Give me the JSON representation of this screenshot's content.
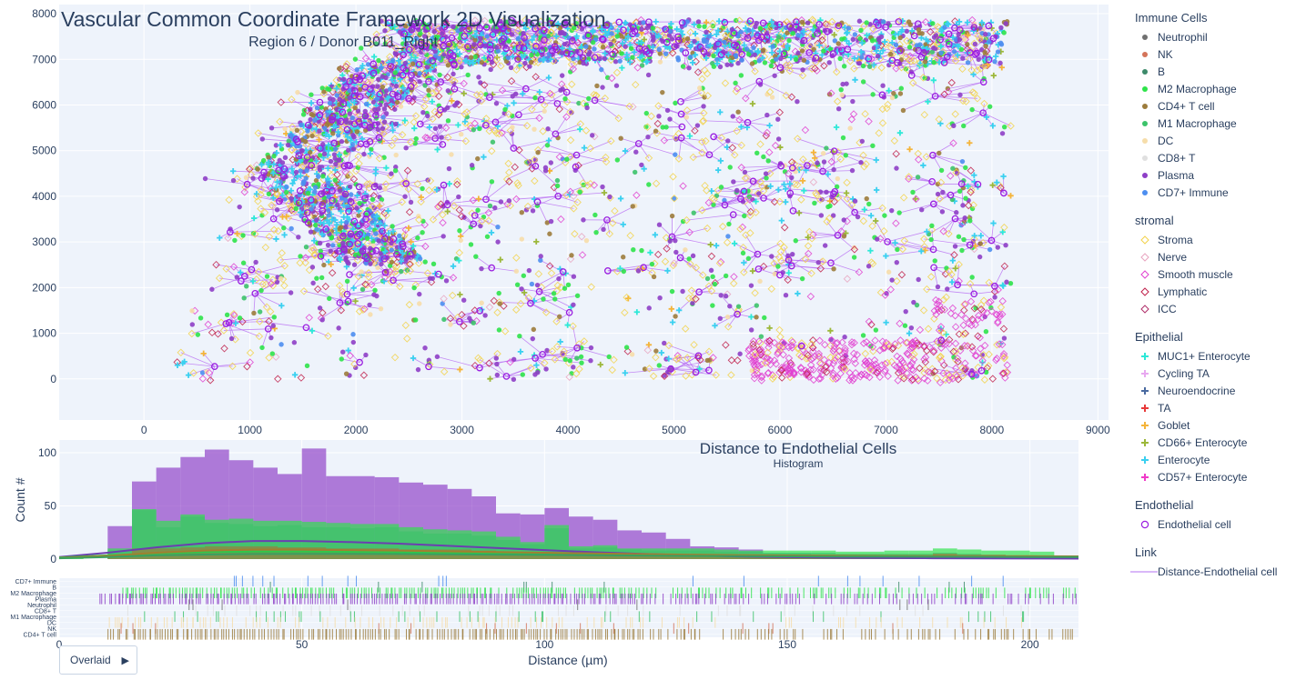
{
  "chart_data": [
    {
      "type": "scatter",
      "title": "Vascular Common Coordinate Framework 2D Visualization",
      "subtitle": "Region 6 / Donor B011_Right",
      "xlim": [
        -800,
        9100
      ],
      "ylim": [
        -900,
        8200
      ],
      "x_ticks": [
        0,
        1000,
        2000,
        3000,
        4000,
        5000,
        6000,
        7000,
        8000,
        9000
      ],
      "y_ticks": [
        0,
        1000,
        2000,
        3000,
        4000,
        5000,
        6000,
        7000,
        8000
      ],
      "grid": true,
      "legend_position": "right",
      "legend_groups": [
        {
          "title": "Immune Cells",
          "items": [
            {
              "name": "Neutrophil",
              "color": "#707070",
              "symbol": "circle"
            },
            {
              "name": "NK",
              "color": "#d4745a",
              "symbol": "circle"
            },
            {
              "name": "B",
              "color": "#3d8a6a",
              "symbol": "circle"
            },
            {
              "name": "M2 Macrophage",
              "color": "#2ee34a",
              "symbol": "circle"
            },
            {
              "name": "CD4+ T cell",
              "color": "#9c7c3c",
              "symbol": "circle"
            },
            {
              "name": "M1 Macrophage",
              "color": "#3cc36a",
              "symbol": "circle"
            },
            {
              "name": "DC",
              "color": "#f6ddaa",
              "symbol": "circle"
            },
            {
              "name": "CD8+ T",
              "color": "#e0e0e0",
              "symbol": "circle"
            },
            {
              "name": "Plasma",
              "color": "#8e3fc7",
              "symbol": "circle"
            },
            {
              "name": "CD7+ Immune",
              "color": "#4d8ef0",
              "symbol": "circle"
            }
          ]
        },
        {
          "title": "stromal",
          "items": [
            {
              "name": "Stroma",
              "color": "#f2d24a",
              "symbol": "diamond-open"
            },
            {
              "name": "Nerve",
              "color": "#e8a4c0",
              "symbol": "diamond-open"
            },
            {
              "name": "Smooth muscle",
              "color": "#e040d0",
              "symbol": "diamond-open"
            },
            {
              "name": "Lymphatic",
              "color": "#c0204a",
              "symbol": "diamond-open"
            },
            {
              "name": "ICC",
              "color": "#b0306a",
              "symbol": "diamond-open"
            }
          ]
        },
        {
          "title": "Epithelial",
          "items": [
            {
              "name": "MUC1+ Enterocyte",
              "color": "#2ee8d8",
              "symbol": "cross"
            },
            {
              "name": "Cycling TA",
              "color": "#e8a8f0",
              "symbol": "cross"
            },
            {
              "name": "Neuroendocrine",
              "color": "#4a6aa0",
              "symbol": "cross"
            },
            {
              "name": "TA",
              "color": "#e83a3a",
              "symbol": "cross"
            },
            {
              "name": "Goblet",
              "color": "#f4b43a",
              "symbol": "cross"
            },
            {
              "name": "CD66+ Enterocyte",
              "color": "#9cb83a",
              "symbol": "cross"
            },
            {
              "name": "Enterocyte",
              "color": "#3ad0f0",
              "symbol": "cross"
            },
            {
              "name": "CD57+ Enterocyte",
              "color": "#f03ac8",
              "symbol": "cross"
            }
          ]
        },
        {
          "title": "Endothelial",
          "items": [
            {
              "name": "Endothelial cell",
              "color": "#9a1ee0",
              "symbol": "circle-open"
            }
          ]
        },
        {
          "title": "Link",
          "items": [
            {
              "name": "Distance-Endothelial cell",
              "color": "#d9b8f8",
              "symbol": "line"
            }
          ]
        }
      ]
    },
    {
      "type": "histogram",
      "title": "Distance to Endothelial Cells",
      "subtitle": "Histogram",
      "xlabel": "Distance (µm)",
      "ylabel": "Count #",
      "xlim": [
        0,
        210
      ],
      "ylim": [
        0,
        112
      ],
      "x_ticks": [
        0,
        50,
        100,
        150,
        200
      ],
      "y_ticks": [
        0,
        50,
        100
      ],
      "bin_width": 5,
      "bin_starts": [
        0,
        10,
        15,
        20,
        25,
        30,
        35,
        40,
        45,
        50,
        55,
        60,
        65,
        70,
        75,
        80,
        85,
        90,
        95,
        100,
        105,
        110,
        115,
        120,
        125,
        130,
        135,
        140,
        145,
        150,
        155,
        160,
        165,
        170,
        175,
        180,
        185,
        190,
        195,
        200,
        205
      ],
      "barmode": "overlay",
      "series": [
        {
          "name": "Plasma",
          "color": "#8e3fc7",
          "values": [
            0,
            31,
            73,
            86,
            96,
            103,
            93,
            86,
            80,
            104,
            78,
            78,
            77,
            72,
            70,
            66,
            59,
            43,
            42,
            48,
            40,
            37,
            27,
            25,
            19,
            12,
            11,
            9,
            5,
            5,
            3,
            3,
            2,
            2,
            1,
            1,
            1,
            0,
            0,
            0,
            0
          ]
        },
        {
          "name": "M2 Macrophage",
          "color": "#2ee34a",
          "values": [
            2,
            10,
            47,
            36,
            42,
            37,
            38,
            36,
            36,
            35,
            34,
            33,
            33,
            30,
            28,
            27,
            26,
            21,
            16,
            32,
            12,
            13,
            10,
            10,
            10,
            10,
            9,
            8,
            8,
            8,
            8,
            7,
            7,
            8,
            8,
            10,
            9,
            8,
            8,
            7,
            3
          ]
        },
        {
          "name": "M1 Macrophage",
          "color": "#3cc36a",
          "values": [
            0,
            8,
            46,
            30,
            40,
            34,
            33,
            31,
            32,
            30,
            30,
            29,
            30,
            26,
            24,
            24,
            22,
            18,
            14,
            29,
            10,
            11,
            9,
            8,
            8,
            8,
            7,
            7,
            6,
            6,
            6,
            5,
            5,
            5,
            5,
            6,
            5,
            4,
            3,
            3,
            2
          ]
        },
        {
          "name": "CD4+ T cell",
          "color": "#9c7c3c",
          "values": [
            0,
            3,
            10,
            10,
            11,
            12,
            12,
            12,
            11,
            11,
            10,
            10,
            10,
            9,
            9,
            9,
            8,
            7,
            6,
            6,
            5,
            5,
            5,
            4,
            4,
            4,
            4,
            4,
            3,
            3,
            4,
            3,
            3,
            3,
            3,
            5,
            4,
            4,
            3,
            3,
            2
          ]
        }
      ],
      "density": [
        {
          "name": "Plasma",
          "color": "#6b3fb0",
          "x": [
            0,
            10,
            20,
            30,
            40,
            50,
            60,
            70,
            80,
            90,
            100,
            110,
            120,
            130,
            140,
            150,
            160,
            170,
            180,
            190,
            200,
            210
          ],
          "y": [
            2.0,
            6.0,
            11.0,
            15.0,
            17.0,
            17.0,
            16.0,
            14.5,
            12.5,
            10.5,
            8.5,
            6.5,
            5.0,
            3.6,
            2.5,
            1.8,
            1.3,
            1.0,
            0.8,
            0.6,
            0.5,
            0.4
          ]
        },
        {
          "name": "M2 Macrophage",
          "color": "#2ec84a",
          "x": [
            0,
            10,
            20,
            30,
            40,
            50,
            60,
            70,
            80,
            90,
            100,
            110,
            120,
            130,
            140,
            150,
            160,
            170,
            180,
            190,
            200,
            210
          ],
          "y": [
            1.5,
            3.5,
            5.5,
            6.5,
            7.0,
            7.0,
            6.8,
            6.4,
            6.0,
            5.5,
            5.0,
            4.5,
            4.0,
            3.6,
            3.2,
            2.9,
            2.7,
            2.6,
            2.6,
            2.6,
            2.5,
            2.4
          ]
        },
        {
          "name": "CD4+ T cell",
          "color": "#a08030",
          "x": [
            0,
            10,
            20,
            30,
            40,
            50,
            60,
            70,
            80,
            90,
            100,
            110,
            120,
            130,
            140,
            150,
            160,
            170,
            180,
            190,
            200,
            210
          ],
          "y": [
            1.0,
            3.0,
            6.0,
            8.0,
            9.0,
            9.0,
            8.5,
            8.0,
            7.3,
            6.6,
            6.0,
            5.3,
            4.7,
            4.2,
            3.8,
            3.4,
            3.2,
            3.0,
            2.9,
            2.8,
            2.7,
            2.6
          ]
        },
        {
          "name": "M1 Macrophage",
          "color": "#3aa060",
          "x": [
            0,
            10,
            20,
            30,
            40,
            50,
            60,
            70,
            80,
            90,
            100,
            110,
            120,
            130,
            140,
            150,
            160,
            170,
            180,
            190,
            200,
            210
          ],
          "y": [
            0.8,
            2.0,
            3.5,
            4.3,
            4.8,
            5.0,
            5.0,
            4.8,
            4.5,
            4.2,
            3.9,
            3.6,
            3.3,
            3.0,
            2.8,
            2.6,
            2.4,
            2.3,
            2.2,
            2.1,
            2.0,
            2.0
          ]
        }
      ]
    },
    {
      "type": "rug",
      "xlim": [
        0,
        210
      ],
      "rows": [
        {
          "name": "CD7+ Immune",
          "color": "#4d8ef0",
          "density": 0.05,
          "range": [
            28,
            200
          ]
        },
        {
          "name": "B",
          "color": "#3d8a6a",
          "density": 0.03,
          "range": [
            20,
            190
          ]
        },
        {
          "name": "M2 Macrophage",
          "color": "#2ee34a",
          "density": 0.9,
          "range": [
            13,
            210
          ]
        },
        {
          "name": "Plasma",
          "color": "#8e3fc7",
          "density": 0.95,
          "range": [
            8,
            210
          ]
        },
        {
          "name": "Neutrophil",
          "color": "#707070",
          "density": 0.03,
          "range": [
            20,
            180
          ]
        },
        {
          "name": "CD8+ T",
          "color": "#e0e0e0",
          "density": 0.2,
          "range": [
            10,
            200
          ]
        },
        {
          "name": "M1 Macrophage",
          "color": "#3cc36a",
          "density": 0.15,
          "range": [
            10,
            200
          ]
        },
        {
          "name": "DC",
          "color": "#f6ddaa",
          "density": 0.4,
          "range": [
            10,
            200
          ]
        },
        {
          "name": "NK",
          "color": "#d4745a",
          "density": 0.05,
          "range": [
            10,
            190
          ]
        },
        {
          "name": "CD4+ T cell",
          "color": "#9c7c3c",
          "density": 0.95,
          "range": [
            10,
            210
          ]
        }
      ]
    }
  ],
  "controls": {
    "dropdown_label": "Overlaid"
  }
}
